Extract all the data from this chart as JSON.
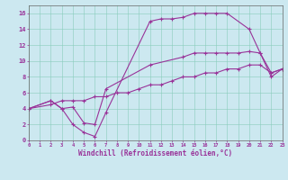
{
  "xlabel": "Windchill (Refroidissement éolien,°C)",
  "bg_color": "#cce8f0",
  "line_color": "#993399",
  "xlim": [
    0,
    23
  ],
  "ylim": [
    0,
    17
  ],
  "xticks": [
    0,
    1,
    2,
    3,
    4,
    5,
    6,
    7,
    8,
    9,
    10,
    11,
    12,
    13,
    14,
    15,
    16,
    17,
    18,
    19,
    20,
    21,
    22,
    23
  ],
  "yticks": [
    0,
    2,
    4,
    6,
    8,
    10,
    12,
    14,
    16
  ],
  "series": [
    {
      "x": [
        0,
        2,
        3,
        4,
        5,
        6,
        7,
        11,
        12,
        13,
        14,
        15,
        16,
        17,
        18,
        20,
        21,
        22,
        23
      ],
      "y": [
        4,
        5,
        4,
        2,
        1,
        0.5,
        3.5,
        15,
        15.3,
        15.3,
        15.5,
        16,
        16,
        16,
        16,
        14,
        11,
        8.5,
        9
      ]
    },
    {
      "x": [
        0,
        2,
        3,
        4,
        5,
        6,
        7,
        11,
        14,
        15,
        16,
        17,
        18,
        19,
        20,
        21,
        22,
        23
      ],
      "y": [
        4,
        5,
        4,
        4.2,
        2.2,
        2,
        6.5,
        9.5,
        10.5,
        11,
        11,
        11,
        11,
        11,
        11.2,
        11,
        8,
        9
      ]
    },
    {
      "x": [
        0,
        2,
        3,
        4,
        5,
        6,
        7,
        8,
        9,
        10,
        11,
        12,
        13,
        14,
        15,
        16,
        17,
        18,
        19,
        20,
        21,
        22,
        23
      ],
      "y": [
        4,
        4.5,
        5,
        5,
        5,
        5.5,
        5.5,
        6,
        6,
        6.5,
        7,
        7,
        7.5,
        8,
        8,
        8.5,
        8.5,
        9,
        9,
        9.5,
        9.5,
        8.5,
        9
      ]
    }
  ]
}
